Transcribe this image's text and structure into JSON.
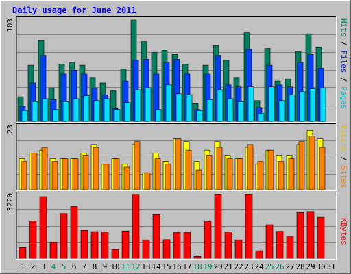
{
  "title": "Daily usage for June 2011",
  "days": [
    "1",
    "2",
    "3",
    "4",
    "5",
    "6",
    "7",
    "8",
    "9",
    "10",
    "11",
    "12",
    "13",
    "14",
    "15",
    "16",
    "17",
    "18",
    "19",
    "20",
    "21",
    "22",
    "23",
    "24",
    "25",
    "26",
    "27",
    "28",
    "29",
    "30",
    "31"
  ],
  "weekend_days": [
    4,
    5,
    11,
    12,
    18,
    19,
    25,
    26
  ],
  "panels": {
    "top": {
      "y_max_label": "103",
      "legend": [
        {
          "text": "Pages",
          "color": "#00c0d0"
        },
        {
          "text": " / ",
          "color": "#000000"
        },
        {
          "text": "Files",
          "color": "#0020e0"
        },
        {
          "text": " / ",
          "color": "#000000"
        },
        {
          "text": "Hits",
          "color": "#008060"
        }
      ]
    },
    "middle": {
      "y_max_label": "23",
      "legend": [
        {
          "text": "Sites",
          "color": "#ff8000"
        },
        {
          "text": " / ",
          "color": "#000000"
        },
        {
          "text": "Visits",
          "color": "#e0c000"
        }
      ]
    },
    "bottom": {
      "y_max_label": "3220",
      "legend": [
        {
          "text": "KBytes",
          "color": "#ff0000"
        }
      ]
    }
  },
  "colors": {
    "hits": "#008060",
    "files": "#0040ff",
    "pages": "#00e0ff",
    "visits": "#ffff00",
    "sites": "#ff8000",
    "kbytes": "#ff0000",
    "title": "#0000ff",
    "weekend_label": "#008060"
  },
  "chart_data": [
    {
      "type": "bar",
      "name": "hits-files-pages",
      "categories": [
        "1",
        "2",
        "3",
        "4",
        "5",
        "6",
        "7",
        "8",
        "9",
        "10",
        "11",
        "12",
        "13",
        "14",
        "15",
        "16",
        "17",
        "18",
        "19",
        "20",
        "21",
        "22",
        "23",
        "24",
        "25",
        "26",
        "27",
        "28",
        "29",
        "30",
        "31"
      ],
      "ylim": [
        0,
        103
      ],
      "series": [
        {
          "name": "Hits",
          "values": [
            25,
            57,
            82,
            34,
            58,
            60,
            57,
            44,
            39,
            31,
            53,
            103,
            81,
            70,
            72,
            68,
            58,
            18,
            57,
            77,
            62,
            44,
            90,
            21,
            74,
            41,
            43,
            71,
            89,
            75,
            0
          ]
        },
        {
          "name": "Files",
          "values": [
            15,
            39,
            67,
            22,
            48,
            52,
            48,
            34,
            27,
            13,
            41,
            62,
            63,
            48,
            60,
            63,
            48,
            12,
            48,
            67,
            37,
            35,
            73,
            14,
            57,
            37,
            35,
            60,
            68,
            54,
            0
          ]
        },
        {
          "name": "Pages",
          "values": [
            11,
            20,
            23,
            12,
            20,
            23,
            26,
            21,
            23,
            12,
            19,
            32,
            34,
            12,
            37,
            28,
            27,
            11,
            22,
            32,
            23,
            20,
            35,
            8,
            35,
            21,
            27,
            30,
            33,
            34,
            0
          ]
        }
      ]
    },
    {
      "type": "bar",
      "name": "visits-sites",
      "categories": [
        "1",
        "2",
        "3",
        "4",
        "5",
        "6",
        "7",
        "8",
        "9",
        "10",
        "11",
        "12",
        "13",
        "14",
        "15",
        "16",
        "17",
        "18",
        "19",
        "20",
        "21",
        "22",
        "23",
        "24",
        "25",
        "26",
        "27",
        "28",
        "29",
        "30",
        "31"
      ],
      "ylim": [
        0,
        23
      ],
      "series": [
        {
          "name": "Visits",
          "values": [
            11,
            13,
            14,
            11,
            11,
            11,
            13,
            16,
            9,
            11,
            9,
            16,
            6,
            13,
            10,
            18,
            17,
            10,
            14,
            17,
            12,
            11,
            15,
            9,
            14,
            12,
            12,
            16,
            21,
            18,
            0
          ]
        },
        {
          "name": "Sites",
          "values": [
            10,
            13,
            15,
            10,
            11,
            11,
            12,
            15,
            9,
            11,
            8,
            17,
            6,
            11,
            9,
            18,
            14,
            7,
            12,
            15,
            11,
            11,
            16,
            10,
            14,
            10,
            11,
            17,
            19,
            15,
            0
          ]
        }
      ]
    },
    {
      "type": "bar",
      "name": "kbytes",
      "categories": [
        "1",
        "2",
        "3",
        "4",
        "5",
        "6",
        "7",
        "8",
        "9",
        "10",
        "11",
        "12",
        "13",
        "14",
        "15",
        "16",
        "17",
        "18",
        "19",
        "20",
        "21",
        "22",
        "23",
        "24",
        "25",
        "26",
        "27",
        "28",
        "29",
        "30",
        "31"
      ],
      "ylim": [
        0,
        3220
      ],
      "series": [
        {
          "name": "KBytes",
          "values": [
            530,
            1850,
            3050,
            780,
            2210,
            2570,
            1380,
            1320,
            1310,
            440,
            1350,
            3160,
            910,
            2160,
            920,
            1290,
            1290,
            90,
            1810,
            3170,
            1310,
            910,
            3170,
            370,
            1660,
            1330,
            1100,
            2260,
            2310,
            2030,
            0
          ]
        }
      ]
    }
  ]
}
